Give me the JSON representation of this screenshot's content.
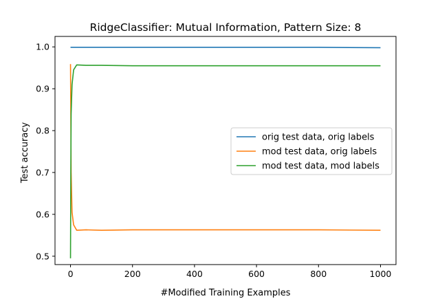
{
  "chart_data": {
    "type": "line",
    "title": "RidgeClassifier: Mutual Information, Pattern Size: 8",
    "xlabel": "#Modified Training Examples",
    "ylabel": "Test accuracy",
    "xlim": [
      -50,
      1050
    ],
    "ylim": [
      0.48,
      1.025
    ],
    "xticks": [
      0,
      200,
      400,
      600,
      800,
      1000
    ],
    "yticks": [
      0.5,
      0.6,
      0.7,
      0.8,
      0.9,
      1.0
    ],
    "xtick_labels": [
      "0",
      "200",
      "400",
      "600",
      "800",
      "1000"
    ],
    "ytick_labels": [
      "0.5",
      "0.6",
      "0.7",
      "0.8",
      "0.9",
      "1.0"
    ],
    "grid": false,
    "legend_position": "center-right",
    "series": [
      {
        "name": "orig test data, orig labels",
        "color": "#1f77b4",
        "x": [
          0,
          1,
          2,
          5,
          10,
          20,
          50,
          100,
          200,
          400,
          600,
          800,
          1000
        ],
        "y": [
          0.999,
          0.999,
          0.999,
          0.999,
          0.999,
          0.999,
          0.999,
          0.999,
          0.999,
          0.999,
          0.999,
          0.999,
          0.998
        ]
      },
      {
        "name": "mod test data, orig labels",
        "color": "#ff7f0e",
        "x": [
          0,
          1,
          2,
          5,
          10,
          20,
          50,
          100,
          200,
          400,
          600,
          800,
          1000
        ],
        "y": [
          0.959,
          0.84,
          0.7,
          0.605,
          0.575,
          0.562,
          0.563,
          0.562,
          0.563,
          0.563,
          0.563,
          0.563,
          0.562
        ]
      },
      {
        "name": "mod test data, mod labels",
        "color": "#2ca02c",
        "x": [
          0,
          1,
          2,
          5,
          10,
          20,
          50,
          100,
          200,
          400,
          600,
          800,
          1000
        ],
        "y": [
          0.495,
          0.7,
          0.84,
          0.91,
          0.945,
          0.957,
          0.956,
          0.956,
          0.955,
          0.955,
          0.955,
          0.955,
          0.955
        ]
      }
    ]
  }
}
